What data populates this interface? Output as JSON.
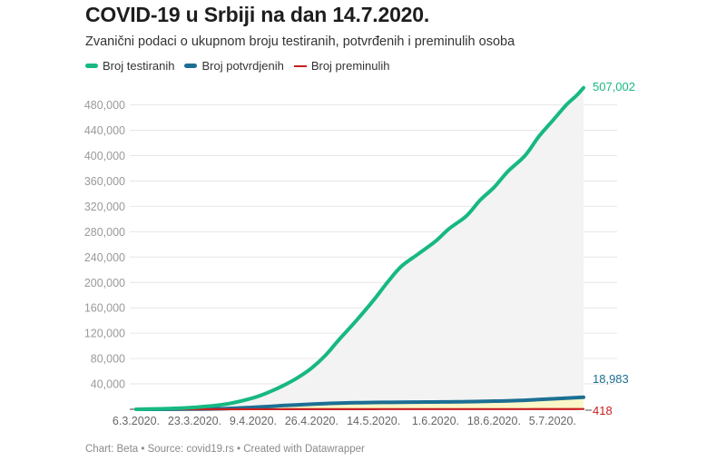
{
  "header": {
    "title": "COVID-19 u Srbiji na dan 14.7.2020.",
    "subtitle": "Zvanični podaci o ukupnom broju testiranih, potvrđenih i preminulih osoba"
  },
  "legend": [
    {
      "label": "Broj testiranih",
      "color": "#17b882"
    },
    {
      "label": "Broj potvrdjenih",
      "color": "#1c6f93"
    },
    {
      "label": "Broj preminulih",
      "color": "#c91f1f"
    }
  ],
  "footer": {
    "text": "Chart: Beta • Source: covid19.rs • Created with Datawrapper"
  },
  "colors": {
    "grid": "#e6e6e6",
    "area_testirani": "#f3f3f3",
    "area_potvrdjeni": "#fbf7c8",
    "baseline": "#333333"
  },
  "chart_data": {
    "type": "line",
    "title": "COVID-19 u Srbiji na dan 14.7.2020.",
    "subtitle": "Zvanični podaci o ukupnom broju testiranih, potvrđenih i preminulih osoba",
    "xlabel": "",
    "ylabel": "",
    "ylim": [
      0,
      507002
    ],
    "grid": true,
    "legend_position": "top-left",
    "x_tick_labels": [
      "6.3.2020.",
      "23.3.2020.",
      "9.4.2020.",
      "26.4.2020.",
      "14.5.2020.",
      "1.6.2020.",
      "18.6.2020.",
      "5.7.2020."
    ],
    "y_tick_labels": [
      "40,000",
      "80,000",
      "120,000",
      "160,000",
      "200,000",
      "240,000",
      "280,000",
      "320,000",
      "360,000",
      "400,000",
      "440,000",
      "480,000"
    ],
    "y_ticks": [
      40000,
      80000,
      120000,
      160000,
      200000,
      240000,
      280000,
      320000,
      360000,
      400000,
      440000,
      480000
    ],
    "x": [
      "6.3.2020.",
      "15.3.2020.",
      "23.3.2020.",
      "1.4.2020.",
      "9.4.2020.",
      "14.4.2020.",
      "18.4.2020.",
      "22.4.2020.",
      "26.4.2020.",
      "30.4.2020.",
      "4.5.2020.",
      "9.5.2020.",
      "14.5.2020.",
      "18.5.2020.",
      "22.5.2020.",
      "27.5.2020.",
      "1.6.2020.",
      "5.6.2020.",
      "10.6.2020.",
      "14.6.2020.",
      "18.6.2020.",
      "22.6.2020.",
      "27.6.2020.",
      "1.7.2020.",
      "5.7.2020.",
      "9.7.2020.",
      "12.7.2020.",
      "14.7.2020."
    ],
    "day_index": [
      0,
      9,
      17,
      26,
      34,
      39,
      43,
      47,
      51,
      55,
      59,
      64,
      69,
      73,
      77,
      82,
      87,
      91,
      96,
      100,
      104,
      108,
      113,
      117,
      121,
      125,
      128,
      130
    ],
    "series": [
      {
        "name": "Broj testiranih",
        "color": "#17b882",
        "values": [
          0,
          1000,
          3000,
          8000,
          18000,
          28000,
          38000,
          50000,
          65000,
          85000,
          110000,
          140000,
          172000,
          200000,
          225000,
          245000,
          265000,
          285000,
          305000,
          330000,
          350000,
          375000,
          400000,
          430000,
          455000,
          480000,
          495000,
          507002
        ],
        "end_label": "507,002"
      },
      {
        "name": "Broj potvrdjenih",
        "color": "#1c6f93",
        "values": [
          0,
          50,
          300,
          1100,
          3000,
          4500,
          6000,
          7000,
          8000,
          9000,
          9700,
          10300,
          10700,
          10900,
          11100,
          11300,
          11500,
          11700,
          11900,
          12300,
          12800,
          13300,
          14200,
          15400,
          16400,
          17600,
          18400,
          18983
        ],
        "end_label": "18,983"
      },
      {
        "name": "Broj preminulih",
        "color": "#c91f1f",
        "values": [
          0,
          0,
          3,
          31,
          71,
          110,
          130,
          150,
          160,
          170,
          190,
          215,
          230,
          240,
          242,
          243,
          245,
          250,
          252,
          254,
          257,
          270,
          289,
          330,
          370,
          394,
          405,
          418
        ],
        "end_label": "418"
      }
    ]
  }
}
